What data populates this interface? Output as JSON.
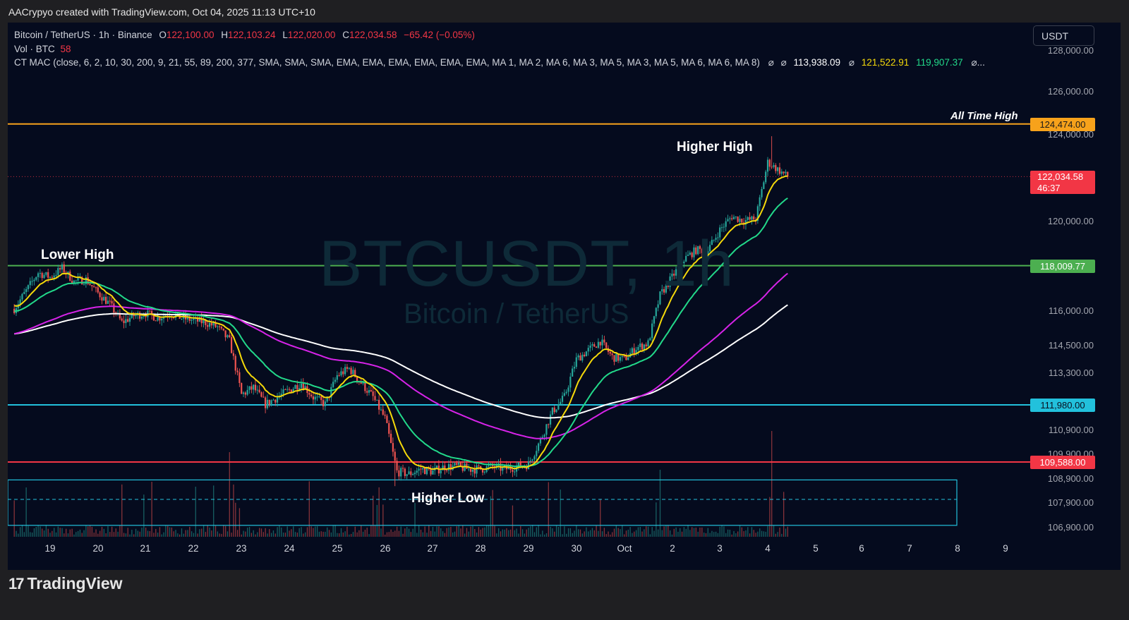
{
  "header": {
    "credit": "AACrypyo created with TradingView.com, Oct 04, 2025 11:13 UTC+10"
  },
  "legend": {
    "symbol": "Bitcoin / TetherUS · 1h · Binance",
    "o_label": "O",
    "o": "122,100.00",
    "h_label": "H",
    "h": "122,103.24",
    "l_label": "L",
    "l": "122,020.00",
    "c_label": "C",
    "c": "122,034.58",
    "change": "−65.42 (−0.05%)",
    "vol_label": "Vol · BTC",
    "vol": "58",
    "indicator": "CT MAC (close, 6, 2, 10, 30, 200, 9, 21, 55, 89, 200, 377, SMA, SMA, SMA, EMA, EMA, EMA, EMA, EMA, EMA, MA 1, MA 2, MA 6, MA 3, MA 5, MA 3, MA 5, MA 6, MA 6, MA 8)",
    "ind_sym1": "⌀",
    "ind_sym2": "⌀",
    "ind_v1": "113,938.09",
    "ind_sym3": "⌀",
    "ind_v2": "121,522.91",
    "ind_v3": "119,907.37",
    "ind_more": "⌀..."
  },
  "currency": "USDT",
  "watermark": {
    "symbol": "BTCUSDT, 1h",
    "name": "Bitcoin / TetherUS"
  },
  "annotations": {
    "ath": "All Time High",
    "higher_high": "Higher High",
    "lower_high": "Lower High",
    "higher_low": "Higher Low"
  },
  "price_badges": {
    "ath": "124,474.00",
    "last": "122,034.58",
    "countdown": "46:37",
    "r1": "118,009.77",
    "s1": "111,980.00",
    "s2": "109,588.00"
  },
  "colors": {
    "background": "#050b1e",
    "up": "#26a69a",
    "down": "#ef5350",
    "ema_yellow": "#f5d90a",
    "ema_green": "#22d98a",
    "ema_magenta": "#d623e8",
    "ema_white": "#ffffff",
    "ath_line": "#f7a21b",
    "resistance": "#4caf50",
    "support_cyan": "#22c1dc",
    "support_red": "#f23645"
  },
  "branding": {
    "logo": "TradingView",
    "logo_mark": "17"
  },
  "chart_data": {
    "type": "candlestick",
    "symbol": "BTCUSDT",
    "interval": "1h",
    "y_ticks": [
      "128,000.00",
      "126,000.00",
      "124,000.00",
      "120,000.00",
      "116,000.00",
      "114,500.00",
      "113,300.00",
      "110,900.00",
      "109,900.00",
      "108,900.00",
      "107,900.00",
      "106,900.00"
    ],
    "x_ticks": [
      "19",
      "20",
      "21",
      "22",
      "23",
      "24",
      "25",
      "26",
      "27",
      "28",
      "29",
      "30",
      "Oct",
      "2",
      "3",
      "4",
      "5",
      "6",
      "7",
      "8",
      "9"
    ],
    "horizontal_levels": [
      {
        "label": "All Time High",
        "value": 124474.0
      },
      {
        "label": "",
        "value": 118009.77
      },
      {
        "label": "",
        "value": 111980.0
      },
      {
        "label": "",
        "value": 109588.0
      }
    ],
    "support_zone": [
      107200,
      108800
    ],
    "close_path": [
      [
        "Sep 18 06:00",
        116100
      ],
      [
        "Sep 18 12:00",
        116900
      ],
      [
        "Sep 18 18:00",
        117700
      ],
      [
        "Sep 19 00:00",
        117500
      ],
      [
        "Sep 19 06:00",
        117900
      ],
      [
        "Sep 19 12:00",
        117300
      ],
      [
        "Sep 19 18:00",
        117400
      ],
      [
        "Sep 20 00:00",
        116800
      ],
      [
        "Sep 20 06:00",
        116300
      ],
      [
        "Sep 20 12:00",
        115500
      ],
      [
        "Sep 20 18:00",
        115800
      ],
      [
        "Sep 21 00:00",
        115900
      ],
      [
        "Sep 21 06:00",
        115700
      ],
      [
        "Sep 21 12:00",
        115900
      ],
      [
        "Sep 21 18:00",
        115700
      ],
      [
        "Sep 22 00:00",
        115600
      ],
      [
        "Sep 22 06:00",
        115500
      ],
      [
        "Sep 22 12:00",
        115300
      ],
      [
        "Sep 22 18:00",
        114700
      ],
      [
        "Sep 23 00:00",
        112400
      ],
      [
        "Sep 23 06:00",
        112700
      ],
      [
        "Sep 23 12:00",
        112000
      ],
      [
        "Sep 23 18:00",
        112300
      ],
      [
        "Sep 24 00:00",
        112600
      ],
      [
        "Sep 24 06:00",
        112900
      ],
      [
        "Sep 24 12:00",
        112300
      ],
      [
        "Sep 24 18:00",
        112000
      ],
      [
        "Sep 25 00:00",
        113200
      ],
      [
        "Sep 25 06:00",
        113500
      ],
      [
        "Sep 25 12:00",
        112900
      ],
      [
        "Sep 25 18:00",
        112300
      ],
      [
        "Sep 26 00:00",
        111400
      ],
      [
        "Sep 26 06:00",
        109200
      ],
      [
        "Sep 26 12:00",
        109100
      ],
      [
        "Sep 26 18:00",
        109300
      ],
      [
        "Sep 27 00:00",
        109200
      ],
      [
        "Sep 27 06:00",
        109400
      ],
      [
        "Sep 27 12:00",
        109400
      ],
      [
        "Sep 27 18:00",
        109300
      ],
      [
        "Sep 28 00:00",
        109300
      ],
      [
        "Sep 28 06:00",
        109400
      ],
      [
        "Sep 28 12:00",
        109300
      ],
      [
        "Sep 28 18:00",
        109400
      ],
      [
        "Sep 29 00:00",
        109500
      ],
      [
        "Sep 29 06:00",
        110500
      ],
      [
        "Sep 29 12:00",
        111700
      ],
      [
        "Sep 29 18:00",
        112300
      ],
      [
        "Sep 30 00:00",
        113900
      ],
      [
        "Sep 30 06:00",
        114300
      ],
      [
        "Sep 30 12:00",
        114700
      ],
      [
        "Sep 30 18:00",
        114000
      ],
      [
        "Oct 01 00:00",
        113900
      ],
      [
        "Oct 01 06:00",
        114400
      ],
      [
        "Oct 01 12:00",
        114600
      ],
      [
        "Oct 01 18:00",
        116700
      ],
      [
        "Oct 02 00:00",
        117500
      ],
      [
        "Oct 02 06:00",
        118300
      ],
      [
        "Oct 02 12:00",
        118700
      ],
      [
        "Oct 02 18:00",
        118700
      ],
      [
        "Oct 03 00:00",
        119600
      ],
      [
        "Oct 03 06:00",
        120200
      ],
      [
        "Oct 03 12:00",
        120000
      ],
      [
        "Oct 03 18:00",
        120100
      ],
      [
        "Oct 04 00:00",
        122700
      ],
      [
        "Oct 04 06:00",
        122300
      ],
      [
        "Oct 04 10:00",
        122034.58
      ]
    ]
  }
}
